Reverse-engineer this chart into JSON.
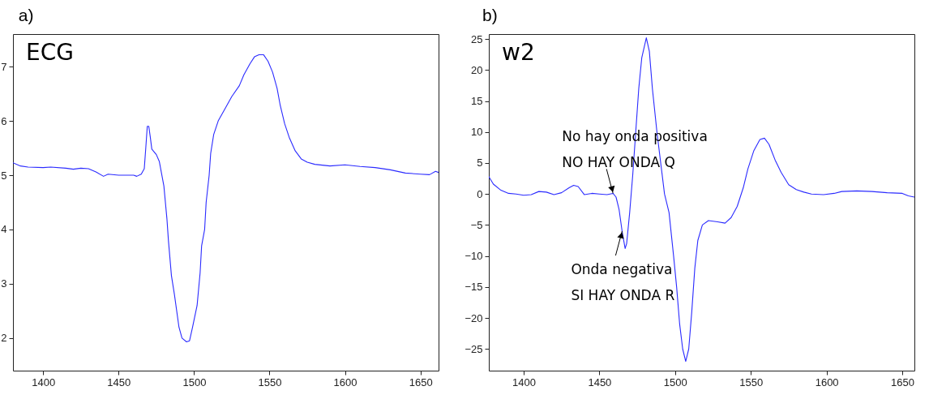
{
  "chart_data": [
    {
      "type": "line",
      "title": "a)",
      "annotations": [
        "ECG"
      ],
      "xlim": [
        1380,
        1662
      ],
      "ylim": [
        1.4,
        7.6
      ],
      "xticks": [
        1400,
        1450,
        1500,
        1550,
        1600,
        1650
      ],
      "yticks": [
        2,
        3,
        4,
        5,
        6,
        7
      ],
      "grid": false,
      "x": [
        1380,
        1385,
        1390,
        1400,
        1405,
        1415,
        1420,
        1425,
        1430,
        1435,
        1440,
        1443,
        1450,
        1460,
        1462,
        1465,
        1467,
        1468,
        1469,
        1470,
        1471,
        1472,
        1475,
        1477,
        1480,
        1482,
        1483,
        1485,
        1487,
        1490,
        1492,
        1495,
        1497,
        1499,
        1502,
        1504,
        1505,
        1507,
        1508,
        1510,
        1511,
        1513,
        1516,
        1520,
        1525,
        1530,
        1533,
        1537,
        1540,
        1543,
        1546,
        1549,
        1552,
        1555,
        1557,
        1560,
        1563,
        1567,
        1571,
        1575,
        1580,
        1590,
        1600,
        1610,
        1620,
        1630,
        1640,
        1650,
        1656,
        1660,
        1662
      ],
      "series": [
        {
          "color": "#2b2bff",
          "values": [
            5.23,
            5.17,
            5.15,
            5.14,
            5.15,
            5.13,
            5.11,
            5.13,
            5.12,
            5.06,
            4.98,
            5.02,
            5.0,
            5.0,
            4.98,
            5.02,
            5.12,
            5.5,
            5.9,
            5.9,
            5.7,
            5.48,
            5.38,
            5.25,
            4.8,
            4.2,
            3.8,
            3.15,
            2.8,
            2.2,
            2.0,
            1.93,
            1.95,
            2.2,
            2.6,
            3.2,
            3.7,
            4.0,
            4.5,
            5.0,
            5.4,
            5.75,
            6.0,
            6.2,
            6.45,
            6.65,
            6.85,
            7.05,
            7.18,
            7.22,
            7.22,
            7.1,
            6.9,
            6.6,
            6.3,
            5.95,
            5.7,
            5.45,
            5.3,
            5.24,
            5.2,
            5.17,
            5.19,
            5.16,
            5.14,
            5.1,
            5.04,
            5.02,
            5.01,
            5.07,
            5.05
          ]
        }
      ]
    },
    {
      "type": "line",
      "title": "b)",
      "annotations": [
        "w2",
        {
          "text": "No hay onda positiva\nNO HAY ONDA Q",
          "x": 1459,
          "y": 0.1
        },
        {
          "text": "Onda negativa\nSI HAY ONDA R",
          "x": 1465,
          "y": -6
        }
      ],
      "xlim": [
        1377,
        1658
      ],
      "ylim": [
        -28.5,
        25.8
      ],
      "xticks": [
        1400,
        1450,
        1500,
        1550,
        1600,
        1650
      ],
      "yticks": [
        -25,
        -20,
        -15,
        -10,
        -5,
        0,
        5,
        10,
        15,
        20,
        25
      ],
      "grid": false,
      "x": [
        1377,
        1380,
        1385,
        1390,
        1395,
        1400,
        1405,
        1410,
        1415,
        1420,
        1425,
        1430,
        1433,
        1436,
        1440,
        1445,
        1450,
        1455,
        1459,
        1461,
        1463,
        1465,
        1467,
        1468,
        1470,
        1472,
        1474,
        1476,
        1478,
        1481,
        1483,
        1485,
        1488,
        1491,
        1493,
        1496,
        1499,
        1501,
        1503,
        1505,
        1507,
        1509,
        1511,
        1513,
        1515,
        1518,
        1522,
        1528,
        1533,
        1537,
        1541,
        1545,
        1548,
        1552,
        1556,
        1559,
        1562,
        1566,
        1570,
        1575,
        1580,
        1585,
        1590,
        1598,
        1605,
        1610,
        1620,
        1630,
        1640,
        1650,
        1654,
        1658
      ],
      "series": [
        {
          "color": "#2b2bff",
          "values": [
            2.8,
            1.6,
            0.6,
            0.1,
            0,
            -0.2,
            -0.1,
            0.4,
            0.3,
            -0.1,
            0.2,
            1.0,
            1.4,
            1.2,
            -0.1,
            0.1,
            0,
            -0.1,
            0.1,
            -0.5,
            -2.5,
            -6,
            -8.8,
            -8.0,
            -3,
            3,
            10,
            17,
            22,
            25.2,
            23,
            17,
            10,
            4,
            0,
            -3,
            -10,
            -15,
            -21,
            -25,
            -27,
            -25,
            -19,
            -12,
            -7.5,
            -5,
            -4.3,
            -4.5,
            -4.7,
            -3.8,
            -2,
            1,
            4,
            7,
            8.8,
            9,
            8,
            5.5,
            3.5,
            1.5,
            0.7,
            0.3,
            0,
            -0.1,
            0.1,
            0.4,
            0.5,
            0.4,
            0.2,
            0.1,
            -0.3,
            -0.5
          ]
        }
      ]
    }
  ]
}
